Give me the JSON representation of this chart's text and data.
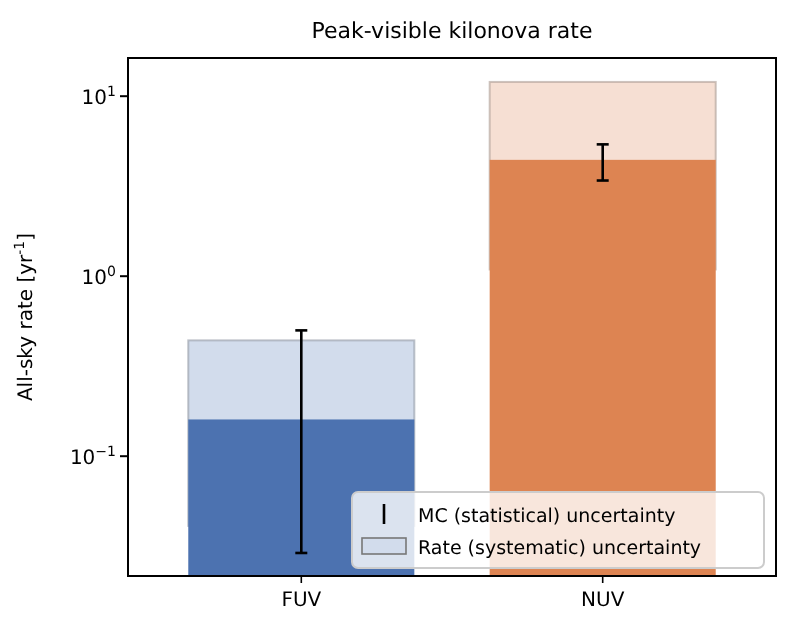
{
  "chart_data": {
    "type": "bar",
    "title": "Peak-visible kilonova rate",
    "ylabel": "All-sky rate [yr$^{-1}$]",
    "categories": [
      "FUV",
      "NUV"
    ],
    "series": [
      {
        "name": "Rate (systematic) uncertainty",
        "colors": [
          "#d2dcec",
          "#f6dfd3"
        ],
        "base": [
          0.041,
          1.09
        ],
        "values": [
          0.399,
          10.91
        ]
      },
      {
        "name": "MC (statistical) uncertainty",
        "colors": [
          "#4c72b0",
          "#dd8452"
        ],
        "values": [
          0.16,
          4.43
        ],
        "errors": [
          [
            0.029,
            0.5
          ],
          [
            3.4,
            5.4
          ]
        ]
      }
    ],
    "log": true,
    "ylim": [
      0.0216,
      16.3
    ],
    "yticks": [
      {
        "value": 0.1,
        "label": "10$^{−1}$"
      },
      {
        "value": 1,
        "label": "10$^{0}$"
      },
      {
        "value": 10,
        "label": "10$^{1}$"
      }
    ],
    "grid": false,
    "legend": "bottom right"
  }
}
